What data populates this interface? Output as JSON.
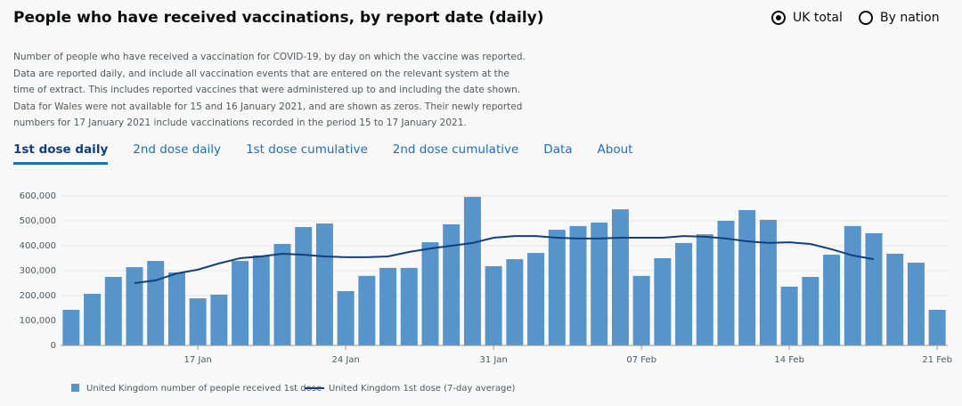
{
  "header": {
    "title": "People who have received vaccinations, by report date (daily)",
    "options": [
      "UK total",
      "By nation"
    ]
  },
  "description": [
    "Number of people who have received a vaccination for COVID-19, by day on which the vaccine was reported.",
    "Data are reported daily, and include all vaccination events that are entered on the relevant system at the",
    "time of extract. This includes reported vaccines that were administered up to and including the date shown.",
    "Data for Wales were not available for 15 and 16 January 2021, and are shown as zeros. Their newly reported",
    "numbers for 17 January 2021 include vaccinations recorded in the period 15 to 17 January 2021."
  ],
  "tabs": [
    "1st dose daily",
    "2nd dose daily",
    "1st dose cumulative",
    "2nd dose cumulative",
    "Data",
    "About"
  ],
  "chart_data": {
    "type": "bar",
    "categories": [
      null,
      null,
      null,
      null,
      null,
      null,
      "17 Jan",
      null,
      null,
      null,
      null,
      null,
      null,
      "24 Jan",
      null,
      null,
      null,
      null,
      null,
      null,
      "31 Jan",
      null,
      null,
      null,
      null,
      null,
      null,
      "07 Feb",
      null,
      null,
      null,
      null,
      null,
      null,
      "14 Feb",
      null,
      null,
      null,
      null,
      null,
      null,
      "21 Feb"
    ],
    "series": [
      {
        "name": "United Kingdom number of people received 1st dose",
        "type": "bar",
        "color": "#5694ca",
        "values": [
          143000,
          207000,
          275000,
          314000,
          339000,
          293000,
          189000,
          204000,
          339000,
          361000,
          407000,
          475000,
          489000,
          218000,
          279000,
          311000,
          311000,
          414000,
          486000,
          596000,
          318000,
          346000,
          371000,
          464000,
          479000,
          493000,
          546000,
          279000,
          350000,
          411000,
          446000,
          500000,
          543000,
          504000,
          236000,
          275000,
          364000,
          479000,
          450000,
          368000,
          332000,
          143000
        ]
      },
      {
        "name": "United Kingdom 1st dose (7-day average)",
        "type": "line",
        "color": "#12407c",
        "values": [
          null,
          null,
          null,
          250000,
          261000,
          289000,
          304000,
          329000,
          350000,
          357000,
          368000,
          364000,
          357000,
          354000,
          354000,
          357000,
          375000,
          389000,
          400000,
          411000,
          432000,
          439000,
          439000,
          432000,
          429000,
          429000,
          432000,
          432000,
          432000,
          439000,
          436000,
          429000,
          418000,
          411000,
          414000,
          407000,
          386000,
          361000,
          346000,
          null,
          null,
          null
        ]
      }
    ],
    "ylim": [
      0,
      600000
    ],
    "yticks": [
      0,
      {
        "value": 100000,
        "label": "100,000"
      },
      {
        "value": 200000,
        "label": "200,000"
      },
      {
        "value": 300000,
        "label": "300,000"
      },
      {
        "value": 400000,
        "label": "400,000"
      },
      {
        "value": 500000,
        "label": "500,000"
      },
      {
        "value": 600000,
        "label": "600,000"
      }
    ],
    "grid": true
  }
}
